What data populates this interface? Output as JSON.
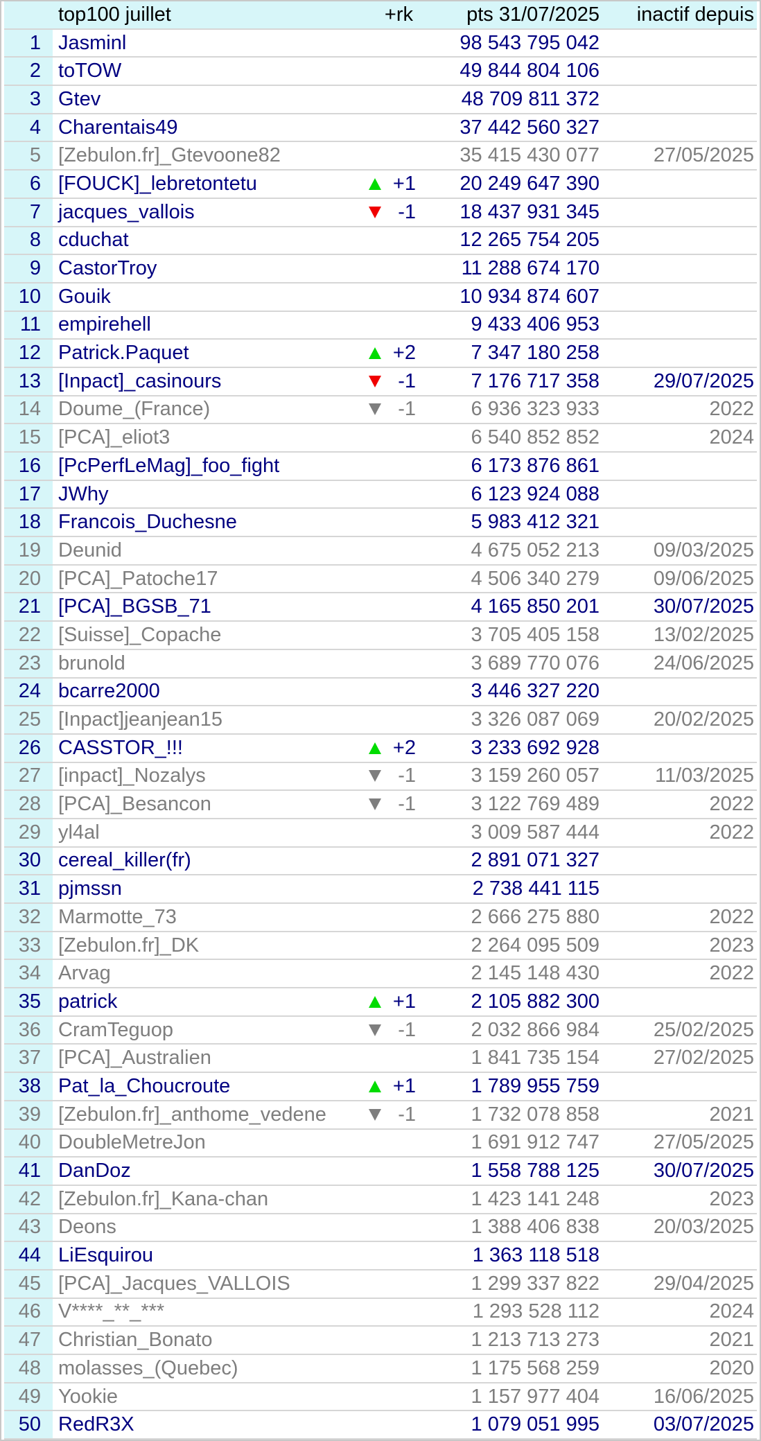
{
  "header": {
    "title": "top100 juillet",
    "rk_label": "+rk",
    "pts_label": "pts 31/07/2025",
    "inactive_label": "inactif depuis"
  },
  "colors": {
    "active_text": "#000080",
    "inactive_text": "#7e7e7e",
    "header_bg": "#d7f6f9",
    "rank_cell_bg": "#d7f6f9",
    "up_triangle": "#00dc00",
    "down_triangle_active": "#f00000",
    "down_triangle_inactive": "#7e7e7e",
    "row_border": "#d6d6d6"
  },
  "rows": [
    {
      "rank": "1",
      "name": "Jasminl",
      "dir": "",
      "tri": "",
      "delta": "",
      "pts": "98 543 795 042",
      "date": "",
      "active": true
    },
    {
      "rank": "2",
      "name": "toTOW",
      "dir": "",
      "tri": "",
      "delta": "",
      "pts": "49 844 804 106",
      "date": "",
      "active": true
    },
    {
      "rank": "3",
      "name": "Gtev",
      "dir": "",
      "tri": "",
      "delta": "",
      "pts": "48 709 811 372",
      "date": "",
      "active": true
    },
    {
      "rank": "4",
      "name": "Charentais49",
      "dir": "",
      "tri": "",
      "delta": "",
      "pts": "37 442 560 327",
      "date": "",
      "active": true
    },
    {
      "rank": "5",
      "name": "[Zebulon.fr]_Gtevoone82",
      "dir": "",
      "tri": "",
      "delta": "",
      "pts": "35 415 430 077",
      "date": "27/05/2025",
      "active": false
    },
    {
      "rank": "6",
      "name": "[FOUCK]_lebretontetu",
      "dir": "up",
      "tri": "green",
      "delta": "+1",
      "pts": "20 249 647 390",
      "date": "",
      "active": true
    },
    {
      "rank": "7",
      "name": "jacques_vallois",
      "dir": "down",
      "tri": "red",
      "delta": "-1",
      "pts": "18 437 931 345",
      "date": "",
      "active": true
    },
    {
      "rank": "8",
      "name": "cduchat",
      "dir": "",
      "tri": "",
      "delta": "",
      "pts": "12 265 754 205",
      "date": "",
      "active": true
    },
    {
      "rank": "9",
      "name": "CastorTroy",
      "dir": "",
      "tri": "",
      "delta": "",
      "pts": "11 288 674 170",
      "date": "",
      "active": true
    },
    {
      "rank": "10",
      "name": "Gouik",
      "dir": "",
      "tri": "",
      "delta": "",
      "pts": "10 934 874 607",
      "date": "",
      "active": true
    },
    {
      "rank": "11",
      "name": "empirehell",
      "dir": "",
      "tri": "",
      "delta": "",
      "pts": "9 433 406 953",
      "date": "",
      "active": true
    },
    {
      "rank": "12",
      "name": "Patrick.Paquet",
      "dir": "up",
      "tri": "green",
      "delta": "+2",
      "pts": "7 347 180 258",
      "date": "",
      "active": true
    },
    {
      "rank": "13",
      "name": "[Inpact]_casinours",
      "dir": "down",
      "tri": "red",
      "delta": "-1",
      "pts": "7 176 717 358",
      "date": "29/07/2025",
      "active": true
    },
    {
      "rank": "14",
      "name": "Doume_(France)",
      "dir": "down",
      "tri": "gray",
      "delta": "-1",
      "pts": "6 936 323 933",
      "date": "2022",
      "active": false
    },
    {
      "rank": "15",
      "name": "[PCA]_eliot3",
      "dir": "",
      "tri": "",
      "delta": "",
      "pts": "6 540 852 852",
      "date": "2024",
      "active": false
    },
    {
      "rank": "16",
      "name": "[PcPerfLeMag]_foo_fight",
      "dir": "",
      "tri": "",
      "delta": "",
      "pts": "6 173 876 861",
      "date": "",
      "active": true
    },
    {
      "rank": "17",
      "name": "JWhy",
      "dir": "",
      "tri": "",
      "delta": "",
      "pts": "6 123 924 088",
      "date": "",
      "active": true
    },
    {
      "rank": "18",
      "name": "Francois_Duchesne",
      "dir": "",
      "tri": "",
      "delta": "",
      "pts": "5 983 412 321",
      "date": "",
      "active": true
    },
    {
      "rank": "19",
      "name": "Deunid",
      "dir": "",
      "tri": "",
      "delta": "",
      "pts": "4 675 052 213",
      "date": "09/03/2025",
      "active": false
    },
    {
      "rank": "20",
      "name": "[PCA]_Patoche17",
      "dir": "",
      "tri": "",
      "delta": "",
      "pts": "4 506 340 279",
      "date": "09/06/2025",
      "active": false
    },
    {
      "rank": "21",
      "name": "[PCA]_BGSB_71",
      "dir": "",
      "tri": "",
      "delta": "",
      "pts": "4 165 850 201",
      "date": "30/07/2025",
      "active": true
    },
    {
      "rank": "22",
      "name": "[Suisse]_Copache",
      "dir": "",
      "tri": "",
      "delta": "",
      "pts": "3 705 405 158",
      "date": "13/02/2025",
      "active": false
    },
    {
      "rank": "23",
      "name": "brunold",
      "dir": "",
      "tri": "",
      "delta": "",
      "pts": "3 689 770 076",
      "date": "24/06/2025",
      "active": false
    },
    {
      "rank": "24",
      "name": "bcarre2000",
      "dir": "",
      "tri": "",
      "delta": "",
      "pts": "3 446 327 220",
      "date": "",
      "active": true
    },
    {
      "rank": "25",
      "name": "[Inpact]jeanjean15",
      "dir": "",
      "tri": "",
      "delta": "",
      "pts": "3 326 087 069",
      "date": "20/02/2025",
      "active": false
    },
    {
      "rank": "26",
      "name": "CASSTOR_!!!",
      "dir": "up",
      "tri": "green",
      "delta": "+2",
      "pts": "3 233 692 928",
      "date": "",
      "active": true
    },
    {
      "rank": "27",
      "name": "[inpact]_Nozalys",
      "dir": "down",
      "tri": "gray",
      "delta": "-1",
      "pts": "3 159 260 057",
      "date": "11/03/2025",
      "active": false
    },
    {
      "rank": "28",
      "name": "[PCA]_Besancon",
      "dir": "down",
      "tri": "gray",
      "delta": "-1",
      "pts": "3 122 769 489",
      "date": "2022",
      "active": false
    },
    {
      "rank": "29",
      "name": "yl4al",
      "dir": "",
      "tri": "",
      "delta": "",
      "pts": "3 009 587 444",
      "date": "2022",
      "active": false
    },
    {
      "rank": "30",
      "name": "cereal_killer(fr)",
      "dir": "",
      "tri": "",
      "delta": "",
      "pts": "2 891 071 327",
      "date": "",
      "active": true
    },
    {
      "rank": "31",
      "name": "pjmssn",
      "dir": "",
      "tri": "",
      "delta": "",
      "pts": "2 738 441 115",
      "date": "",
      "active": true
    },
    {
      "rank": "32",
      "name": "Marmotte_73",
      "dir": "",
      "tri": "",
      "delta": "",
      "pts": "2 666 275 880",
      "date": "2022",
      "active": false
    },
    {
      "rank": "33",
      "name": "[Zebulon.fr]_DK",
      "dir": "",
      "tri": "",
      "delta": "",
      "pts": "2 264 095 509",
      "date": "2023",
      "active": false
    },
    {
      "rank": "34",
      "name": "Arvag",
      "dir": "",
      "tri": "",
      "delta": "",
      "pts": "2 145 148 430",
      "date": "2022",
      "active": false
    },
    {
      "rank": "35",
      "name": "patrick",
      "dir": "up",
      "tri": "green",
      "delta": "+1",
      "pts": "2 105 882 300",
      "date": "",
      "active": true
    },
    {
      "rank": "36",
      "name": "CramTeguop",
      "dir": "down",
      "tri": "gray",
      "delta": "-1",
      "pts": "2 032 866 984",
      "date": "25/02/2025",
      "active": false
    },
    {
      "rank": "37",
      "name": "[PCA]_Australien",
      "dir": "",
      "tri": "",
      "delta": "",
      "pts": "1 841 735 154",
      "date": "27/02/2025",
      "active": false
    },
    {
      "rank": "38",
      "name": "Pat_la_Choucroute",
      "dir": "up",
      "tri": "green",
      "delta": "+1",
      "pts": "1 789 955 759",
      "date": "",
      "active": true
    },
    {
      "rank": "39",
      "name": "[Zebulon.fr]_anthome_vedene",
      "dir": "down",
      "tri": "gray",
      "delta": "-1",
      "pts": "1 732 078 858",
      "date": "2021",
      "active": false
    },
    {
      "rank": "40",
      "name": "DoubleMetreJon",
      "dir": "",
      "tri": "",
      "delta": "",
      "pts": "1 691 912 747",
      "date": "27/05/2025",
      "active": false
    },
    {
      "rank": "41",
      "name": "DanDoz",
      "dir": "",
      "tri": "",
      "delta": "",
      "pts": "1 558 788 125",
      "date": "30/07/2025",
      "active": true
    },
    {
      "rank": "42",
      "name": "[Zebulon.fr]_Kana-chan",
      "dir": "",
      "tri": "",
      "delta": "",
      "pts": "1 423 141 248",
      "date": "2023",
      "active": false
    },
    {
      "rank": "43",
      "name": "Deons",
      "dir": "",
      "tri": "",
      "delta": "",
      "pts": "1 388 406 838",
      "date": "20/03/2025",
      "active": false
    },
    {
      "rank": "44",
      "name": "LiEsquirou",
      "dir": "",
      "tri": "",
      "delta": "",
      "pts": "1 363 118 518",
      "date": "",
      "active": true
    },
    {
      "rank": "45",
      "name": "[PCA]_Jacques_VALLOIS",
      "dir": "",
      "tri": "",
      "delta": "",
      "pts": "1 299 337 822",
      "date": "29/04/2025",
      "active": false
    },
    {
      "rank": "46",
      "name": "V****_**_***",
      "dir": "",
      "tri": "",
      "delta": "",
      "pts": "1 293 528 112",
      "date": "2024",
      "active": false
    },
    {
      "rank": "47",
      "name": "Christian_Bonato",
      "dir": "",
      "tri": "",
      "delta": "",
      "pts": "1 213 713 273",
      "date": "2021",
      "active": false
    },
    {
      "rank": "48",
      "name": "molasses_(Quebec)",
      "dir": "",
      "tri": "",
      "delta": "",
      "pts": "1 175 568 259",
      "date": "2020",
      "active": false
    },
    {
      "rank": "49",
      "name": "Yookie",
      "dir": "",
      "tri": "",
      "delta": "",
      "pts": "1 157 977 404",
      "date": "16/06/2025",
      "active": false
    },
    {
      "rank": "50",
      "name": "RedR3X",
      "dir": "",
      "tri": "",
      "delta": "",
      "pts": "1 079 051 995",
      "date": "03/07/2025",
      "active": true
    }
  ]
}
